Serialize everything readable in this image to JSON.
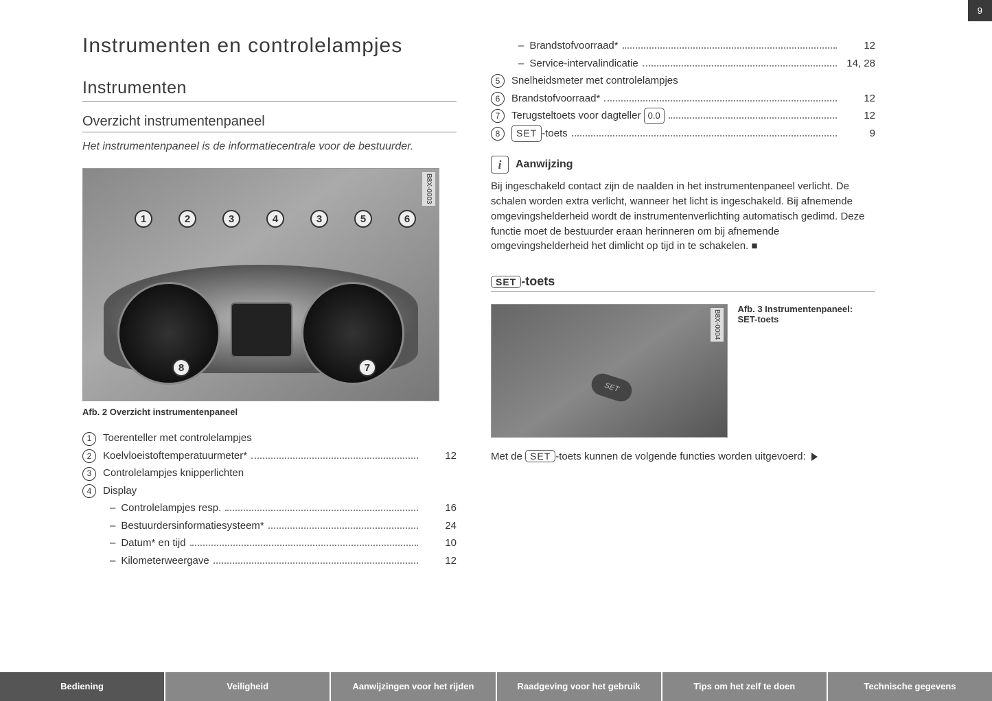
{
  "page_number": "9",
  "h1": "Instrumenten en controlelampjes",
  "h2": "Instrumenten",
  "h3": "Overzicht instrumentenpaneel",
  "intro": "Het instrumentenpaneel is de informatiecentrale voor de bestuurder.",
  "figure2": {
    "ref_code": "B8X-0003",
    "caption": "Afb. 2  Overzicht instrumentenpaneel",
    "callouts_top": [
      "1",
      "2",
      "3",
      "4",
      "3",
      "5",
      "6"
    ],
    "callouts_bottom": [
      "8",
      "7"
    ]
  },
  "left_list": [
    {
      "num": "1",
      "label": "Toerenteller met controlelampjes",
      "page": ""
    },
    {
      "num": "2",
      "label": "Koelvloeistoftemperatuurmeter*",
      "page": "12"
    },
    {
      "num": "3",
      "label": "Controlelampjes knipperlichten",
      "page": ""
    },
    {
      "num": "4",
      "label": "Display",
      "page": "",
      "subs": [
        {
          "label": "Controlelampjes resp.",
          "page": "16"
        },
        {
          "label": "Bestuurdersinformatiesysteem*",
          "page": "24"
        },
        {
          "label": "Datum* en tijd",
          "page": "10"
        },
        {
          "label": "Kilometerweergave",
          "page": "12"
        }
      ]
    }
  ],
  "right_top_subs": [
    {
      "label": "Brandstofvoorraad*",
      "page": "12"
    },
    {
      "label": "Service-intervalindicatie",
      "page": "14, 28"
    }
  ],
  "right_list": [
    {
      "num": "5",
      "label": "Snelheidsmeter met controlelampjes",
      "page": ""
    },
    {
      "num": "6",
      "label": "Brandstofvoorraad*",
      "page": "12"
    },
    {
      "num": "7",
      "label_pre": "Terugsteltoets voor dagteller ",
      "key": "0.0",
      "page": "12"
    },
    {
      "num": "8",
      "key": "SET",
      "label_post": "-toets",
      "page": "9"
    }
  ],
  "info": {
    "title": "Aanwijzing",
    "text": "Bij ingeschakeld contact zijn de naalden in het instrumentenpaneel verlicht. De schalen worden extra verlicht, wanneer het licht is ingeschakeld. Bij afnemende omgevingshelderheid wordt de instrumentenverlichting automatisch gedimd. Deze functie moet de bestuurder eraan herinneren om bij afnemende omgevingshelderheid het dimlicht op tijd in te schakelen."
  },
  "set_section": {
    "key": "SET",
    "suffix": "-toets"
  },
  "figure3": {
    "ref_code": "B8X-0004",
    "caption": "Afb. 3  Instrumentenpaneel: SET-toets",
    "button_label": "SET"
  },
  "set_footer_pre": "Met de ",
  "set_footer_key": "SET",
  "set_footer_post": "-toets kunnen de volgende functies worden uitgevoerd: ",
  "nav": [
    {
      "label": "Bediening",
      "active": true
    },
    {
      "label": "Veiligheid",
      "active": false
    },
    {
      "label": "Aanwijzingen voor het rijden",
      "active": false
    },
    {
      "label": "Raadgeving voor het gebruik",
      "active": false
    },
    {
      "label": "Tips om het zelf te doen",
      "active": false
    },
    {
      "label": "Technische gegevens",
      "active": false
    }
  ]
}
